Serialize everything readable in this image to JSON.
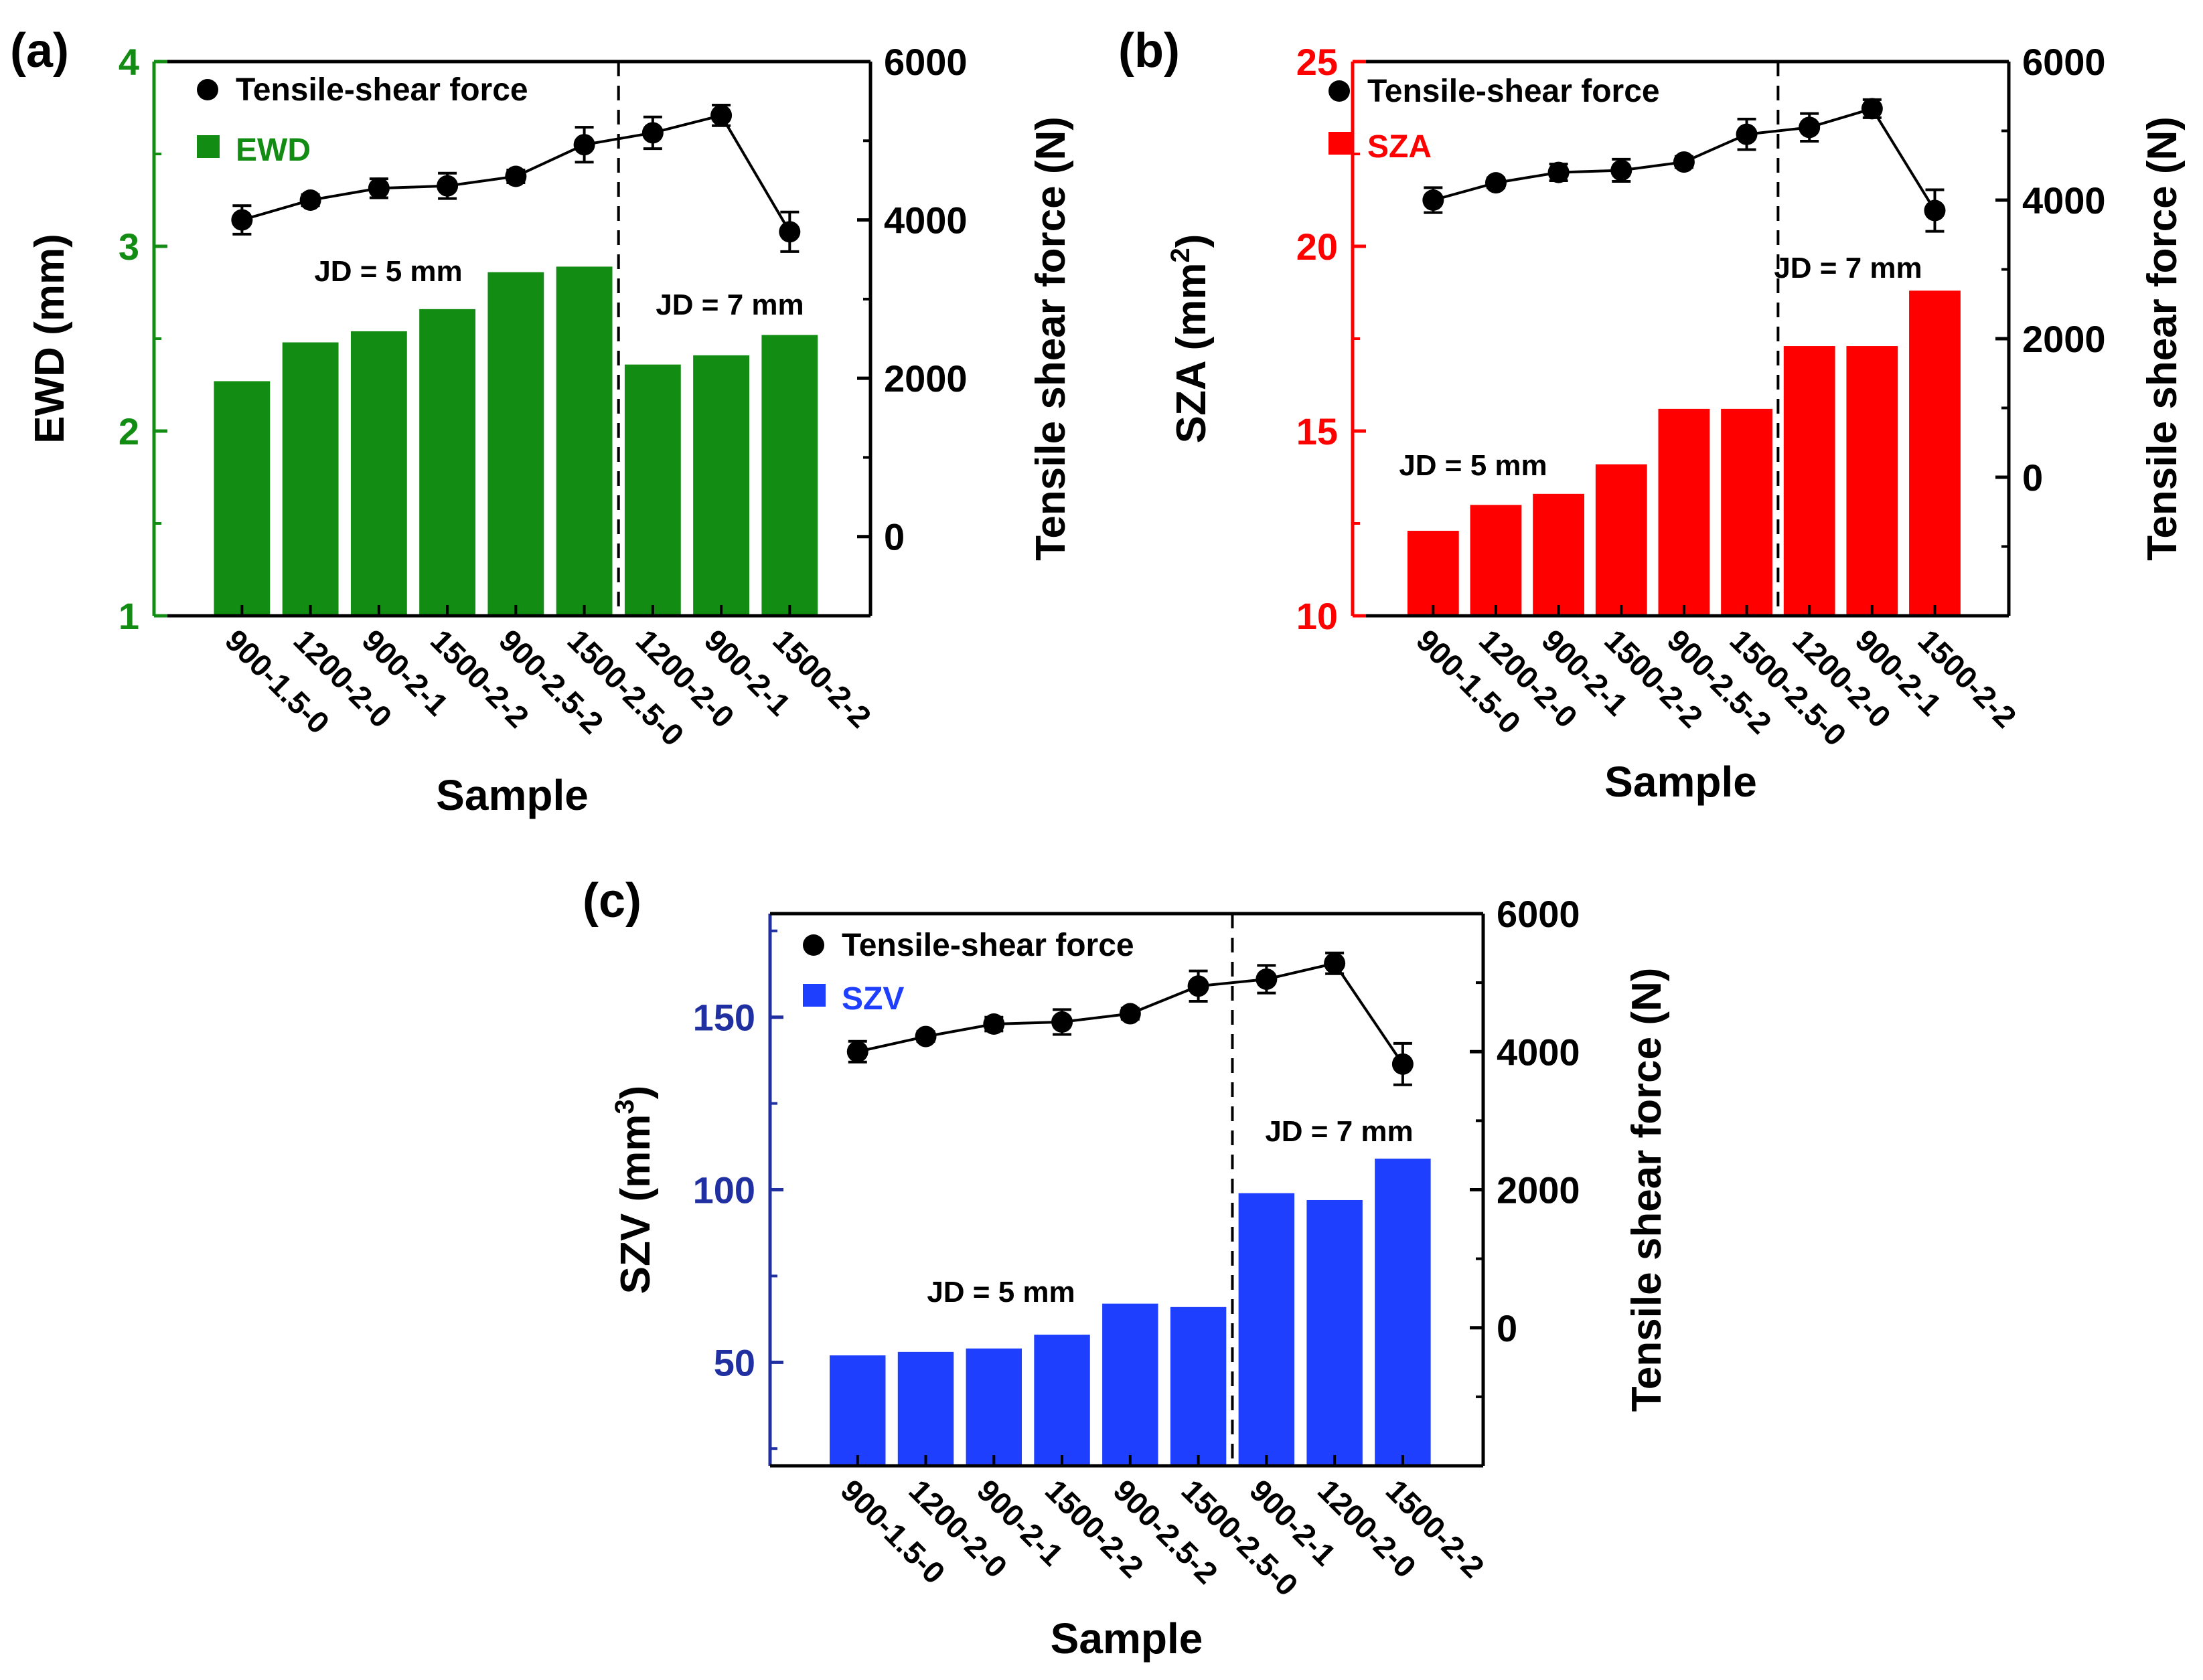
{
  "chart_data": [
    {
      "type": "bar",
      "panel_label": "(a)",
      "xlabel": "Sample",
      "ylabel": "EWD (mm)",
      "y2label": "Tensile shear force (N)",
      "ylim": [
        1,
        4
      ],
      "y_ticks": [
        1,
        2,
        3,
        4
      ],
      "y2lim": [
        -1000,
        6000
      ],
      "y2_ticks": [
        0,
        2000,
        4000,
        6000
      ],
      "categories": [
        "900-1.5-0",
        "1200-2-0",
        "900-2-1",
        "1500-2-2",
        "900-2.5-2",
        "1500-2.5-0",
        "1200-2-0",
        "900-2-1",
        "1500-2-2"
      ],
      "bar_series": {
        "name": "EWD",
        "color": "#138c13",
        "values": [
          2.27,
          2.48,
          2.54,
          2.66,
          2.86,
          2.89,
          2.36,
          2.41,
          2.52
        ]
      },
      "line_series": {
        "name": "Tensile-shear force",
        "color": "#000000",
        "values": [
          4000,
          4250,
          4400,
          4430,
          4550,
          4950,
          5100,
          5320,
          3850
        ],
        "errors": [
          180,
          70,
          120,
          160,
          80,
          220,
          200,
          130,
          250
        ]
      },
      "divider_after_index": 5,
      "annotations": [
        {
          "text": "JD = 5 mm"
        },
        {
          "text": "JD = 7 mm"
        }
      ],
      "axis_color": "#138c13",
      "legend_position": "top-left"
    },
    {
      "type": "bar",
      "panel_label": "(b)",
      "xlabel": "Sample",
      "ylabel_main": "SZA (mm",
      "ylabel_sup": "2",
      "ylabel_close": ")",
      "y2label": "Tensile shear force (N)",
      "ylim": [
        10,
        25
      ],
      "y_ticks": [
        10,
        15,
        20,
        25
      ],
      "y2lim": [
        -2000,
        6000
      ],
      "y2_ticks": [
        0,
        2000,
        4000,
        6000
      ],
      "categories": [
        "900-1.5-0",
        "1200-2-0",
        "900-2-1",
        "1500-2-2",
        "900-2.5-2",
        "1500-2.5-0",
        "1200-2-0",
        "900-2-1",
        "1500-2-2"
      ],
      "bar_series": {
        "name": "SZA",
        "color": "#ff0000",
        "values": [
          12.3,
          13.0,
          13.3,
          14.1,
          15.6,
          15.6,
          17.3,
          17.3,
          18.8
        ]
      },
      "line_series": {
        "name": "Tensile-shear force",
        "color": "#000000",
        "values": [
          4000,
          4250,
          4400,
          4430,
          4550,
          4950,
          5050,
          5320,
          3850
        ],
        "errors": [
          180,
          70,
          120,
          160,
          80,
          220,
          200,
          130,
          300
        ]
      },
      "divider_after_index": 5,
      "annotations": [
        {
          "text": "JD = 5 mm"
        },
        {
          "text": "JD = 7 mm"
        }
      ],
      "axis_color": "#ff0000",
      "legend_position": "top-left"
    },
    {
      "type": "bar",
      "panel_label": "(c)",
      "xlabel": "Sample",
      "ylabel_main": "SZV (mm",
      "ylabel_sup": "3",
      "ylabel_close": ")",
      "y2label": "Tensile shear force (N)",
      "ylim": [
        20,
        180
      ],
      "y_ticks": [
        50,
        100,
        150
      ],
      "y2lim": [
        -2000,
        6000
      ],
      "y2_ticks": [
        0,
        2000,
        4000,
        6000
      ],
      "categories": [
        "900-1.5-0",
        "1200-2-0",
        "900-2-1",
        "1500-2-2",
        "900-2.5-2",
        "1500-2.5-0",
        "900-2-1",
        "1200-2-0",
        "1500-2-2"
      ],
      "bar_series": {
        "name": "SZV",
        "color": "#1f3fff",
        "values": [
          52,
          53,
          54,
          58,
          67,
          66,
          99,
          97,
          109
        ]
      },
      "line_series": {
        "name": "Tensile-shear force",
        "color": "#000000",
        "values": [
          4000,
          4220,
          4400,
          4430,
          4550,
          4950,
          5050,
          5280,
          3820
        ],
        "errors": [
          150,
          70,
          100,
          180,
          80,
          220,
          200,
          150,
          300
        ]
      },
      "divider_after_index": 5,
      "annotations": [
        {
          "text": "JD = 5 mm"
        },
        {
          "text": "JD = 7 mm"
        }
      ],
      "axis_color": "#2030a0",
      "legend_position": "top-left"
    }
  ]
}
